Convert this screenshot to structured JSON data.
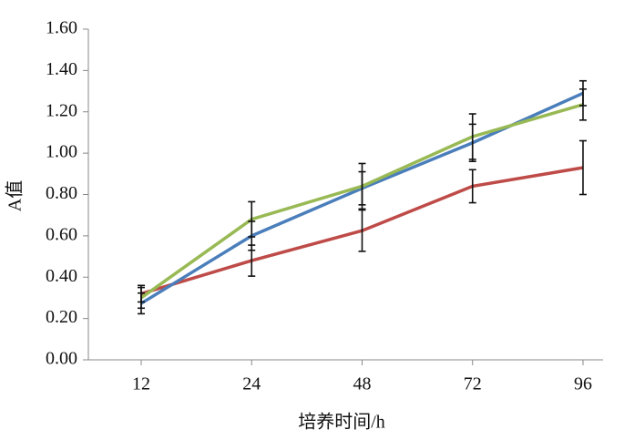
{
  "chart_data": {
    "type": "line",
    "categories": [
      "12",
      "24",
      "48",
      "72",
      "96"
    ],
    "xlabel": "培养时间/h",
    "ylabel": "A值",
    "ylim": [
      0,
      1.6
    ],
    "yticks": [
      {
        "value": 0,
        "label": "0.00"
      },
      {
        "value": 0.2,
        "label": "0.20"
      },
      {
        "value": 0.4,
        "label": "0.40"
      },
      {
        "value": 0.6,
        "label": "0.60"
      },
      {
        "value": 0.8,
        "label": "0.80"
      },
      {
        "value": 1.0,
        "label": "1.00"
      },
      {
        "value": 1.2,
        "label": "1.20"
      },
      {
        "value": 1.4,
        "label": "1.40"
      },
      {
        "value": 1.6,
        "label": "1.60"
      }
    ],
    "grid": false,
    "series": [
      {
        "color": "#be4b48",
        "values": [
          0.32,
          0.48,
          0.625,
          0.84,
          0.93
        ],
        "errors": [
          0.04,
          0.075,
          0.1,
          0.08,
          0.13
        ]
      },
      {
        "color": "#4a7ebb",
        "values": [
          0.273,
          0.6,
          0.83,
          1.05,
          1.29
        ],
        "errors": [
          0.05,
          0.07,
          0.08,
          0.09,
          0.06
        ]
      },
      {
        "color": "#98b954",
        "values": [
          0.3,
          0.68,
          0.84,
          1.08,
          1.235
        ],
        "errors": [
          0.05,
          0.085,
          0.11,
          0.11,
          0.075
        ]
      }
    ]
  }
}
